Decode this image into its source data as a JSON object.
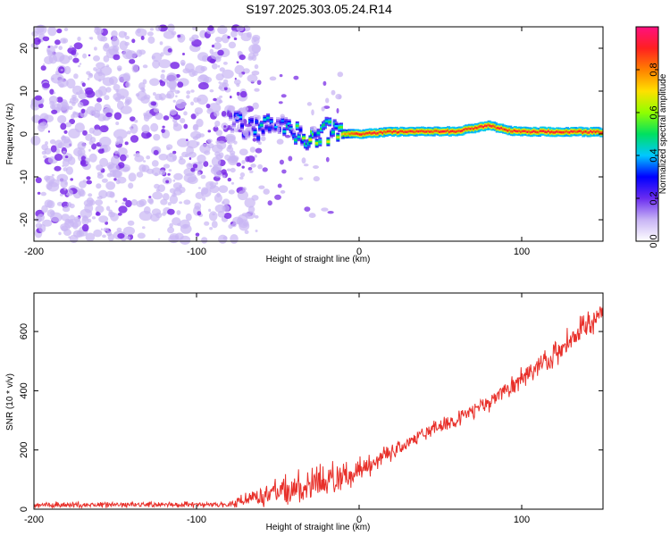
{
  "figure_title": "S197.2025.303.05.24.R14",
  "colors": {
    "snr_line": "#e8302a",
    "speckle_light": "#c9b6f3",
    "speckle_dark": "#7a2ce6",
    "axis": "#000000"
  },
  "chart_data": [
    {
      "type": "heatmap",
      "title": "",
      "xlabel": "Height of straight line (km)",
      "ylabel": "Frequency (Hz)",
      "xlim": [
        -200,
        150
      ],
      "ylim": [
        -25,
        25
      ],
      "xticks": [
        -200,
        -100,
        0,
        100
      ],
      "yticks": [
        -20,
        -10,
        0,
        10,
        20
      ],
      "colorbar": {
        "label": "Normalized spectral amplitude",
        "range": [
          0,
          1
        ],
        "ticks": [
          "0.0",
          "0.2",
          "0.4",
          "0.6",
          "0.8"
        ],
        "colormap": [
          "#ffffff",
          "#c8b4f5",
          "#6a2cf0",
          "#0000ff",
          "#00c8ff",
          "#00e060",
          "#90ff00",
          "#ffe000",
          "#ff8000",
          "#ff2020",
          "#ff1080"
        ]
      },
      "noise_region": {
        "x_range": [
          -200,
          -75
        ],
        "freq_range": [
          -25,
          25
        ],
        "amplitude": 0.1
      },
      "signal_track": {
        "x": [
          -80,
          -70,
          -60,
          -50,
          -40,
          -30,
          -20,
          -10,
          0,
          20,
          40,
          60,
          80,
          90,
          100,
          120,
          140,
          150
        ],
        "frequency": [
          3,
          2,
          1,
          2,
          0,
          -1,
          0.5,
          0,
          0,
          0.5,
          0.6,
          0.6,
          2,
          1,
          0.5,
          0.5,
          0.5,
          0.5
        ],
        "amplitude": [
          0.3,
          0.35,
          0.4,
          0.35,
          0.5,
          0.6,
          0.55,
          0.75,
          0.9,
          0.9,
          0.9,
          0.9,
          0.9,
          0.9,
          0.9,
          0.9,
          0.9,
          0.9
        ]
      }
    },
    {
      "type": "line",
      "title": "",
      "xlabel": "Height of straight line (km)",
      "ylabel": "SNR (10 * v/v)",
      "xlim": [
        -200,
        150
      ],
      "ylim": [
        0,
        730
      ],
      "xticks": [
        -200,
        -100,
        0,
        100
      ],
      "yticks": [
        0,
        200,
        400,
        600
      ],
      "series": [
        {
          "name": "SNR",
          "trend_x": [
            -200,
            -80,
            -70,
            -50,
            -30,
            -10,
            0,
            20,
            40,
            60,
            80,
            100,
            120,
            140,
            150
          ],
          "trend_y": [
            15,
            15,
            30,
            60,
            80,
            110,
            130,
            190,
            260,
            300,
            360,
            440,
            520,
            620,
            680
          ],
          "fluctuation_amplitude": [
            10,
            10,
            25,
            50,
            60,
            55,
            45,
            30,
            25,
            25,
            30,
            40,
            50,
            55,
            50
          ]
        }
      ]
    }
  ]
}
